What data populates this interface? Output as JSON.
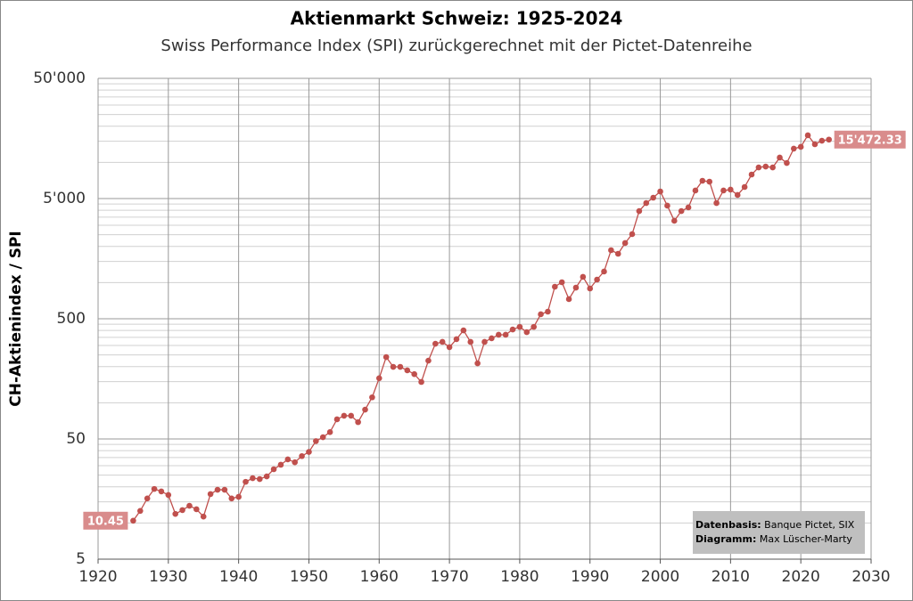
{
  "chart_data": {
    "type": "line",
    "title": "Aktienmarkt Schweiz: 1925-2024",
    "subtitle": "Swiss Performance Index (SPI) zurückgerechnet mit der Pictet-Datenreihe",
    "y_label": "CH-Aktienindex / SPI",
    "log_scale": true,
    "grid": true,
    "color": "#c0504d",
    "x": [
      1925,
      1926,
      1927,
      1928,
      1929,
      1930,
      1931,
      1932,
      1933,
      1934,
      1935,
      1936,
      1937,
      1938,
      1939,
      1940,
      1941,
      1942,
      1943,
      1944,
      1945,
      1946,
      1947,
      1948,
      1949,
      1950,
      1951,
      1952,
      1953,
      1954,
      1955,
      1956,
      1957,
      1958,
      1959,
      1960,
      1961,
      1962,
      1963,
      1964,
      1965,
      1966,
      1967,
      1968,
      1969,
      1970,
      1971,
      1972,
      1973,
      1974,
      1975,
      1976,
      1977,
      1978,
      1979,
      1980,
      1981,
      1982,
      1983,
      1984,
      1985,
      1986,
      1987,
      1988,
      1989,
      1990,
      1991,
      1992,
      1993,
      1994,
      1995,
      1996,
      1997,
      1998,
      1999,
      2000,
      2001,
      2002,
      2003,
      2004,
      2005,
      2006,
      2007,
      2008,
      2009,
      2010,
      2011,
      2012,
      2013,
      2014,
      2015,
      2016,
      2017,
      2018,
      2019,
      2020,
      2021,
      2022,
      2023,
      2024
    ],
    "values": [
      10.45,
      12.6,
      16.0,
      19.2,
      18.3,
      17.1,
      11.9,
      12.8,
      13.9,
      13.0,
      11.3,
      17.4,
      18.9,
      18.9,
      16.0,
      16.5,
      22.0,
      23.6,
      23.2,
      24.4,
      28,
      30.5,
      33.8,
      32,
      36,
      39,
      48,
      51.7,
      57,
      72.8,
      78,
      78,
      69,
      87.7,
      111,
      160,
      240,
      199,
      199,
      186,
      173,
      149,
      224,
      310,
      321,
      290,
      338,
      400,
      321,
      213,
      321,
      344,
      368,
      368,
      407,
      428,
      387,
      428,
      545,
      573,
      924,
      1006,
      728,
      908,
      1115,
      893,
      1059,
      1236,
      1859,
      1737,
      2132,
      2530,
      3935,
      4590,
      5085,
      5729,
      4366,
      3267,
      3935,
      4218,
      5834,
      7033,
      6912,
      4590,
      5834,
      5935,
      5355,
      6240,
      7924,
      9078,
      9233,
      9078,
      10960,
      9883,
      13010,
      13460,
      16800,
      14150,
      15140,
      15472.33
    ],
    "start_label": "10.45",
    "end_label": "15'472.33",
    "xlim": [
      1920,
      2030
    ],
    "xticks": [
      1920,
      1930,
      1940,
      1950,
      1960,
      1970,
      1980,
      1990,
      2000,
      2010,
      2020,
      2030
    ],
    "ylim": [
      5,
      50000
    ],
    "yticks": [
      5,
      50,
      500,
      {
        "value": 5000,
        "label": "5'000"
      },
      {
        "value": 50000,
        "label": "50'000"
      }
    ],
    "source": {
      "label1": "Datenbasis:",
      "text1": "Banque Pictet, SIX",
      "label2": "Diagramm:",
      "text2": "Max Lüscher-Marty"
    }
  }
}
